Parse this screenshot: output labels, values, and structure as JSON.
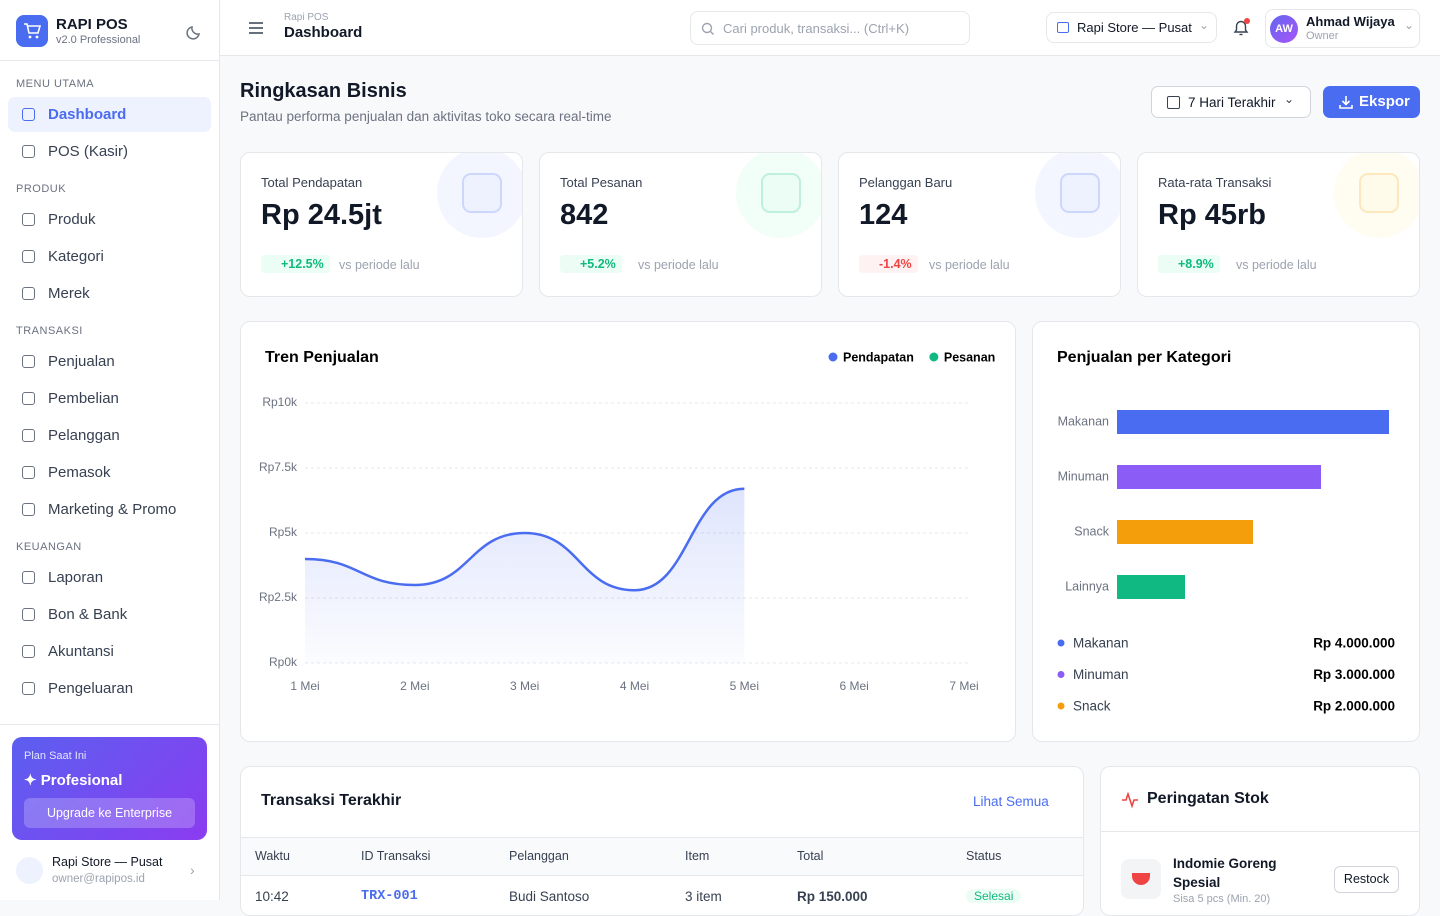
{
  "sidebar": {
    "brand": "RAPI POS",
    "version": "v2.0 Professional",
    "sections": [
      {
        "title": "MENU UTAMA",
        "items": [
          "Dashboard",
          "POS (Kasir)"
        ]
      },
      {
        "title": "PRODUK",
        "items": [
          "Produk",
          "Kategori",
          "Merek"
        ]
      },
      {
        "title": "TRANSAKSI",
        "items": [
          "Penjualan",
          "Pembelian",
          "Pelanggan",
          "Pemasok",
          "Marketing & Promo"
        ]
      },
      {
        "title": "KEUANGAN",
        "items": [
          "Laporan",
          "Bon & Bank",
          "Akuntansi",
          "Pengeluaran"
        ]
      }
    ],
    "plan": {
      "label": "Plan Saat Ini",
      "name": "✦ Profesional",
      "button": "Upgrade ke Enterprise"
    },
    "store": {
      "name": "Rapi Store — Pusat",
      "email": "owner@rapipos.id"
    }
  },
  "header": {
    "breadcrumb": "Rapi POS",
    "title": "Dashboard",
    "search": "Cari produk, transaksi... (Ctrl+K)",
    "store": "Rapi Store — Pusat",
    "avatar": "AW",
    "user": "Ahmad Wijaya",
    "role": "Owner"
  },
  "page": {
    "title": "Ringkasan Bisnis",
    "subtitle": "Pantau performa penjualan dan aktivitas toko secara real-time",
    "range": "7 Hari Terakhir",
    "export": "Ekspor"
  },
  "stats": [
    {
      "label": "Total Pendapatan",
      "value": "Rp 24.5jt",
      "change": "+12.5%",
      "note": "vs periode lalu"
    },
    {
      "label": "Total Pesanan",
      "value": "842",
      "change": "+5.2%",
      "note": "vs periode lalu"
    },
    {
      "label": "Pelanggan Baru",
      "value": "124",
      "change": "-1.4%",
      "note": "vs periode lalu"
    },
    {
      "label": "Rata-rata Transaksi",
      "value": "Rp 45rb",
      "change": "+8.9%",
      "note": "vs periode lalu"
    }
  ],
  "chart_data": [
    {
      "type": "line",
      "title": "Tren Penjualan",
      "categories": [
        "1 Mei",
        "2 Mei",
        "3 Mei",
        "4 Mei",
        "5 Mei",
        "6 Mei",
        "7 Mei"
      ],
      "series": [
        {
          "name": "Pendapatan",
          "color": "#4a6cf0",
          "values": [
            4000,
            3000,
            5000,
            2800,
            6700,
            null,
            null
          ]
        },
        {
          "name": "Pesanan",
          "color": "#10b981",
          "values": [
            null,
            null,
            null,
            null,
            null,
            null,
            null
          ]
        }
      ],
      "ylim": [
        0,
        10000
      ],
      "yticks": [
        {
          "value": 0,
          "label": "Rp0k"
        },
        {
          "value": 2500,
          "label": "Rp2.5k"
        },
        {
          "value": 5000,
          "label": "Rp5k"
        },
        {
          "value": 7500,
          "label": "Rp7.5k"
        },
        {
          "value": 10000,
          "label": "Rp10k"
        }
      ],
      "grid": true
    },
    {
      "type": "hbar",
      "title": "Penjualan per Kategori",
      "categories": [
        "Makanan",
        "Minuman",
        "Snack",
        "Lainnya"
      ],
      "values": [
        4000000,
        3000000,
        2000000,
        1000000
      ],
      "value_labels": [
        "Rp 4.000.000",
        "Rp 3.000.000",
        "Rp 2.000.000",
        null
      ],
      "colors": [
        "#4a6cf0",
        "#8b5cf6",
        "#f59e0b",
        "#10b981"
      ],
      "xlim": [
        0,
        4000000
      ]
    }
  ],
  "transactions": {
    "title": "Transaksi Terakhir",
    "link": "Lihat Semua",
    "columns": [
      "Waktu",
      "ID Transaksi",
      "Pelanggan",
      "Item",
      "Total",
      "Status"
    ],
    "rows": [
      [
        "10:42",
        "TRX-001",
        "Budi Santoso",
        "3 item",
        "Rp 150.000",
        "Selesai"
      ]
    ]
  },
  "stock": {
    "title": "Peringatan Stok",
    "items": [
      {
        "name": "Indomie Goreng Spesial",
        "note": "Sisa 5 pcs (Min. 20)",
        "action": "Restock"
      }
    ]
  }
}
